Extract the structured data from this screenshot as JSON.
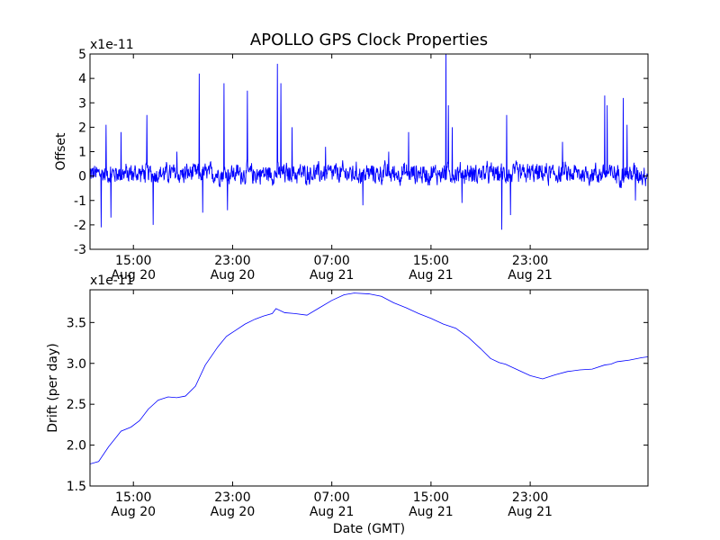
{
  "figure": {
    "title": "APOLLO GPS Clock Properties",
    "background": "#ffffff",
    "line_color": "#0000ff"
  },
  "chart_data": [
    {
      "type": "line",
      "title": "APOLLO GPS Clock Properties",
      "xlabel": "",
      "ylabel": "Offset",
      "scale_label": "x1e-11",
      "x_unit": "hours (GMT), x=0 at 15:00 Aug 20",
      "xlim": [
        -3.5,
        41.5
      ],
      "ylim": [
        -3,
        5
      ],
      "yticks": [
        -3,
        -2,
        -1,
        0,
        1,
        2,
        3,
        4,
        5
      ],
      "ytick_labels": [
        "-3",
        "-2",
        "-1",
        "0",
        "1",
        "2",
        "3",
        "4",
        "5"
      ],
      "xticks": [
        {
          "time": "15:00",
          "date": "Aug 20"
        },
        {
          "time": "23:00",
          "date": "Aug 20"
        },
        {
          "time": "07:00",
          "date": "Aug 21"
        },
        {
          "time": "15:00",
          "date": "Aug 21"
        },
        {
          "time": "23:00",
          "date": "Aug 21"
        }
      ],
      "series": [
        {
          "color": "#0000ff",
          "noise_amplitude": 0.55,
          "baseline": 0.1,
          "spikes": [
            {
              "x": -2.6,
              "y": -2.1
            },
            {
              "x": -2.2,
              "y": 2.1
            },
            {
              "x": -1.8,
              "y": -1.7
            },
            {
              "x": -1.0,
              "y": 1.8
            },
            {
              "x": 1.1,
              "y": 2.5
            },
            {
              "x": 1.6,
              "y": -2.0
            },
            {
              "x": 3.5,
              "y": 1.0
            },
            {
              "x": 5.3,
              "y": 4.2
            },
            {
              "x": 5.6,
              "y": -1.5
            },
            {
              "x": 7.3,
              "y": 3.8
            },
            {
              "x": 7.6,
              "y": -1.4
            },
            {
              "x": 9.2,
              "y": 3.5
            },
            {
              "x": 11.6,
              "y": 4.6
            },
            {
              "x": 11.9,
              "y": 3.8
            },
            {
              "x": 12.8,
              "y": 2.0
            },
            {
              "x": 15.5,
              "y": 1.2
            },
            {
              "x": 18.5,
              "y": -1.2
            },
            {
              "x": 20.6,
              "y": 1.0
            },
            {
              "x": 22.2,
              "y": 1.8
            },
            {
              "x": 25.2,
              "y": 5.0
            },
            {
              "x": 25.4,
              "y": 2.9
            },
            {
              "x": 25.7,
              "y": 2.0
            },
            {
              "x": 26.5,
              "y": -1.1
            },
            {
              "x": 29.7,
              "y": -2.2
            },
            {
              "x": 30.1,
              "y": 2.5
            },
            {
              "x": 30.4,
              "y": -1.6
            },
            {
              "x": 34.6,
              "y": 1.4
            },
            {
              "x": 38.0,
              "y": 3.3
            },
            {
              "x": 38.2,
              "y": 2.9
            },
            {
              "x": 39.5,
              "y": 3.2
            },
            {
              "x": 39.8,
              "y": 2.1
            },
            {
              "x": 40.5,
              "y": -1.0
            }
          ]
        }
      ]
    },
    {
      "type": "line",
      "title": "",
      "xlabel": "Date (GMT)",
      "ylabel": "Drift (per day)",
      "scale_label": "x1e-11",
      "x_unit": "hours (GMT), x=0 at 15:00 Aug 20",
      "xlim": [
        -3.5,
        41.5
      ],
      "ylim": [
        1.5,
        3.9
      ],
      "yticks": [
        1.5,
        2.0,
        2.5,
        3.0,
        3.5
      ],
      "ytick_labels": [
        "1.5",
        "2.0",
        "2.5",
        "3.0",
        "3.5"
      ],
      "xticks": [
        {
          "time": "15:00",
          "date": "Aug 20"
        },
        {
          "time": "23:00",
          "date": "Aug 20"
        },
        {
          "time": "07:00",
          "date": "Aug 21"
        },
        {
          "time": "15:00",
          "date": "Aug 21"
        },
        {
          "time": "23:00",
          "date": "Aug 21"
        }
      ],
      "series": [
        {
          "color": "#0000ff",
          "x": [
            -3.5,
            -2.8,
            -2.0,
            -1.0,
            -0.2,
            0.5,
            1.2,
            2.0,
            2.8,
            3.5,
            4.2,
            5.0,
            5.8,
            6.8,
            7.5,
            8.2,
            9.0,
            9.8,
            10.5,
            11.2,
            11.5,
            12.2,
            13.0,
            14.0,
            15.0,
            16.0,
            17.0,
            17.8,
            19.0,
            20.0,
            21.0,
            22.0,
            23.0,
            24.0,
            25.0,
            26.0,
            27.0,
            28.0,
            28.8,
            29.5,
            30.0,
            31.0,
            32.0,
            33.0,
            34.0,
            35.0,
            36.0,
            37.0,
            38.0,
            38.5,
            39.0,
            40.0,
            41.0,
            41.5
          ],
          "y": [
            1.77,
            1.8,
            1.98,
            2.17,
            2.22,
            2.3,
            2.44,
            2.55,
            2.59,
            2.58,
            2.6,
            2.72,
            2.98,
            3.2,
            3.33,
            3.4,
            3.48,
            3.54,
            3.58,
            3.61,
            3.67,
            3.62,
            3.61,
            3.59,
            3.68,
            3.77,
            3.84,
            3.86,
            3.85,
            3.82,
            3.74,
            3.68,
            3.61,
            3.55,
            3.48,
            3.43,
            3.32,
            3.18,
            3.06,
            3.01,
            2.99,
            2.92,
            2.85,
            2.81,
            2.86,
            2.9,
            2.92,
            2.93,
            2.98,
            2.99,
            3.02,
            3.04,
            3.07,
            3.08
          ]
        }
      ]
    }
  ]
}
